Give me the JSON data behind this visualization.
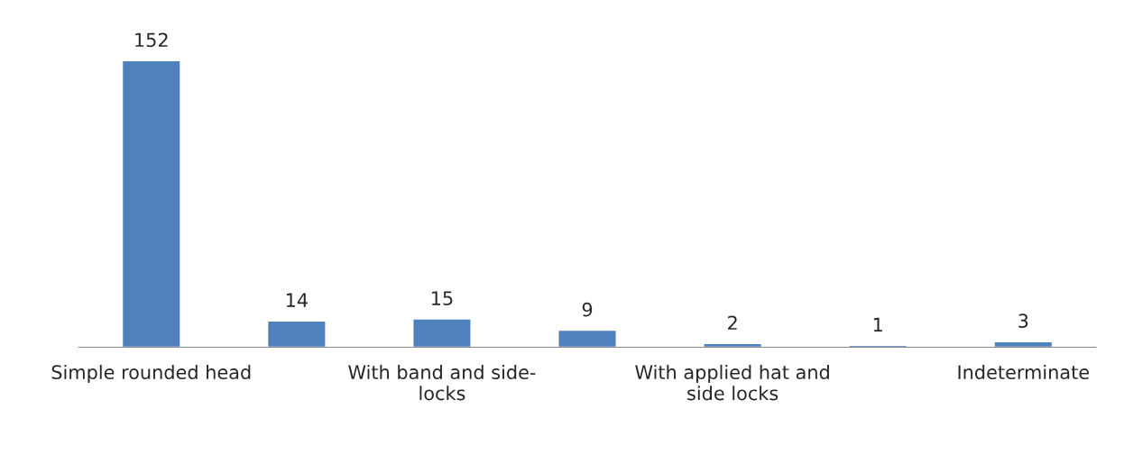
{
  "chart_data": {
    "type": "bar",
    "categories": [
      "Simple rounded head",
      null,
      "With band and side-\nlocks",
      null,
      "With applied hat and\nside locks",
      null,
      "Indeterminate"
    ],
    "values": [
      152,
      14,
      15,
      9,
      2,
      1,
      3
    ],
    "color": "#4f81bd",
    "data_labels": true,
    "grid": false,
    "legend": false
  }
}
